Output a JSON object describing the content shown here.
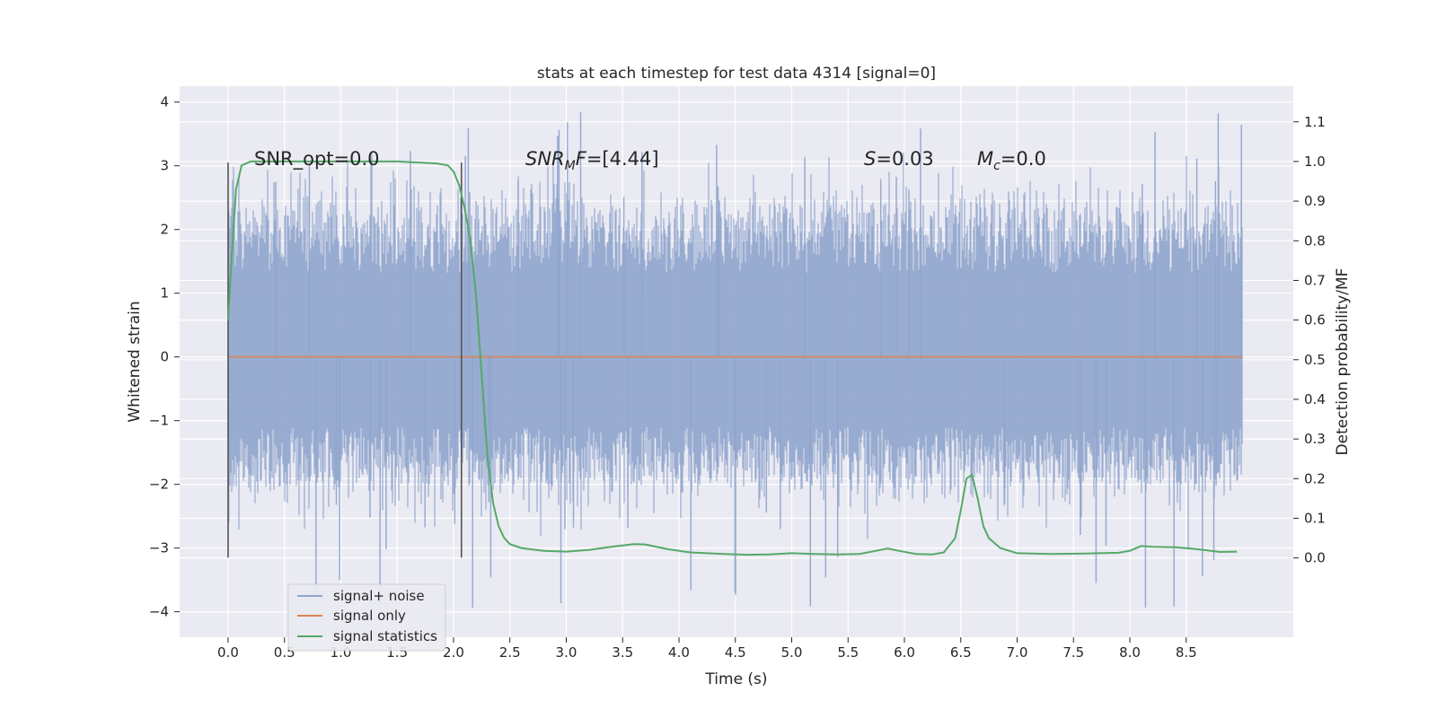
{
  "chart_data": {
    "type": "line",
    "title": "stats at each timestep for test data 4314 [signal=0]",
    "xlabel": "Time (s)",
    "ylabel_left": "Whitened strain",
    "ylabel_right": "Detection probability/MF",
    "xlim": [
      -0.43,
      9.45
    ],
    "ylim_left": [
      -4.4,
      4.25
    ],
    "ylim_right": [
      -0.2,
      1.19
    ],
    "xticks": [
      0.0,
      0.5,
      1.0,
      1.5,
      2.0,
      2.5,
      3.0,
      3.5,
      4.0,
      4.5,
      5.0,
      5.5,
      6.0,
      6.5,
      7.0,
      7.5,
      8.0,
      8.5
    ],
    "xtick_labels": [
      "0.0",
      "0.5",
      "1.0",
      "1.5",
      "2.0",
      "2.5",
      "3.0",
      "3.5",
      "4.0",
      "4.5",
      "5.0",
      "5.5",
      "6.0",
      "6.5",
      "7.0",
      "7.5",
      "8.0",
      "8.5"
    ],
    "yticks_left": [
      -4,
      -3,
      -2,
      -1,
      0,
      1,
      2,
      3,
      4
    ],
    "ytick_labels_left": [
      "−4",
      "−3",
      "−2",
      "−1",
      "0",
      "1",
      "2",
      "3",
      "4"
    ],
    "yticks_right": [
      0.0,
      0.1,
      0.2,
      0.3,
      0.4,
      0.5,
      0.6,
      0.7,
      0.8,
      0.9,
      1.0,
      1.1
    ],
    "ytick_labels_right": [
      "0.0",
      "0.1",
      "0.2",
      "0.3",
      "0.4",
      "0.5",
      "0.6",
      "0.7",
      "0.8",
      "0.9",
      "1.0",
      "1.1"
    ],
    "grid": true,
    "legend_position": "lower-left",
    "legend": [
      "signal+ noise",
      "signal only",
      "signal statistics"
    ],
    "series": [
      {
        "name": "signal+ noise",
        "axis": "left",
        "color": "#8fa4cc",
        "x_range": [
          0.0,
          9.0
        ],
        "amplitude_typical": [
          -2.0,
          2.4
        ],
        "amplitude_extremes": [
          -4.0,
          3.9
        ],
        "note": "whitened noise trace, filled band"
      },
      {
        "name": "signal only",
        "axis": "left",
        "color": "#dd8452",
        "x": [
          0.0,
          9.0
        ],
        "y": [
          0.0,
          0.0
        ]
      },
      {
        "name": "signal statistics",
        "axis": "right",
        "color": "#55a868",
        "x": [
          0.0,
          0.03,
          0.07,
          0.12,
          0.2,
          0.3,
          0.5,
          1.0,
          1.5,
          1.85,
          1.95,
          2.0,
          2.05,
          2.1,
          2.15,
          2.2,
          2.25,
          2.3,
          2.35,
          2.4,
          2.45,
          2.5,
          2.6,
          2.8,
          3.0,
          3.2,
          3.4,
          3.6,
          3.7,
          3.9,
          4.1,
          4.4,
          4.6,
          4.8,
          5.0,
          5.2,
          5.4,
          5.6,
          5.75,
          5.85,
          5.95,
          6.1,
          6.25,
          6.35,
          6.45,
          6.5,
          6.55,
          6.6,
          6.65,
          6.7,
          6.75,
          6.85,
          7.0,
          7.3,
          7.6,
          7.9,
          8.0,
          8.1,
          8.2,
          8.4,
          8.6,
          8.8,
          8.95
        ],
        "y": [
          0.6,
          0.75,
          0.93,
          0.99,
          1.0,
          1.0,
          1.0,
          1.0,
          1.0,
          0.995,
          0.99,
          0.975,
          0.94,
          0.88,
          0.8,
          0.66,
          0.46,
          0.26,
          0.14,
          0.08,
          0.05,
          0.035,
          0.025,
          0.018,
          0.016,
          0.02,
          0.028,
          0.035,
          0.034,
          0.022,
          0.014,
          0.01,
          0.008,
          0.009,
          0.012,
          0.01,
          0.009,
          0.01,
          0.018,
          0.024,
          0.018,
          0.01,
          0.009,
          0.014,
          0.05,
          0.12,
          0.2,
          0.21,
          0.15,
          0.08,
          0.05,
          0.025,
          0.012,
          0.01,
          0.011,
          0.013,
          0.018,
          0.03,
          0.028,
          0.027,
          0.022,
          0.015,
          0.016
        ]
      }
    ],
    "vertical_lines": [
      {
        "x": 0.0,
        "ymin": -3.15,
        "ymax": 3.05,
        "color": "#555555"
      },
      {
        "x": 2.07,
        "ymin": -3.15,
        "ymax": 3.05,
        "color": "#555555"
      }
    ],
    "annotations": {
      "snr_opt": "SNR_opt=0.0",
      "snr_mf_prefix": "SNR",
      "snr_mf_sub": "M",
      "snr_mf_suffix": "F",
      "snr_mf_value": "=[4.44]",
      "s_var": "S",
      "s_value": "=0.03",
      "mc_var": "M",
      "mc_sub": "c",
      "mc_value": "=0.0"
    }
  }
}
